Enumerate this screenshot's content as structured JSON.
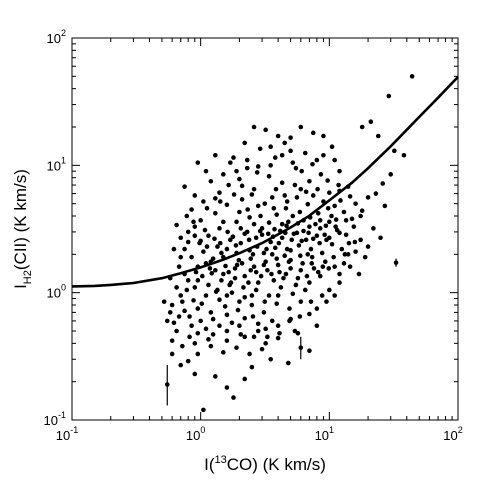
{
  "chart_data": {
    "type": "scatter",
    "xscale": "log",
    "yscale": "log",
    "xlim": [
      0.1,
      100
    ],
    "ylim": [
      0.1,
      100
    ],
    "grid": false,
    "xlabel": {
      "pre": "I(",
      "sup": "13",
      "post": "CO) (K km/s)"
    },
    "ylabel": {
      "main": "I",
      "sub": "H2",
      "post": "(CII) (K km/s)"
    },
    "xticks": [
      {
        "base": "10",
        "exp": "-1"
      },
      {
        "base": "10",
        "exp": "0"
      },
      {
        "base": "10",
        "exp": "1"
      },
      {
        "base": "10",
        "exp": "2"
      }
    ],
    "yticks": [
      {
        "base": "10",
        "exp": "-1"
      },
      {
        "base": "10",
        "exp": "0"
      },
      {
        "base": "10",
        "exp": "1"
      },
      {
        "base": "10",
        "exp": "2"
      }
    ],
    "fit_curve": [
      [
        0.1,
        1.12
      ],
      [
        0.15,
        1.13
      ],
      [
        0.2,
        1.15
      ],
      [
        0.3,
        1.19
      ],
      [
        0.5,
        1.3
      ],
      [
        0.7,
        1.42
      ],
      [
        1,
        1.58
      ],
      [
        1.5,
        1.82
      ],
      [
        2,
        2.04
      ],
      [
        3,
        2.45
      ],
      [
        5,
        3.25
      ],
      [
        7,
        4.02
      ],
      [
        10,
        5.3
      ],
      [
        15,
        7.3
      ],
      [
        20,
        9.5
      ],
      [
        30,
        14.1
      ],
      [
        50,
        24
      ],
      [
        70,
        34
      ],
      [
        100,
        49.5
      ]
    ],
    "error_points": [
      {
        "x": 0.55,
        "y": 0.19,
        "ylo": 0.13,
        "yhi": 0.27
      },
      {
        "x": 6.0,
        "y": 0.37,
        "ylo": 0.3,
        "yhi": 0.45
      },
      {
        "x": 33,
        "y": 1.72,
        "ylo": 1.6,
        "yhi": 1.85
      },
      {
        "x": 1.05,
        "y": 0.12,
        "ylo": 0.12,
        "yhi": 0.12
      }
    ],
    "points": [
      [
        44,
        50
      ],
      [
        29,
        35
      ],
      [
        21,
        22
      ],
      [
        18,
        20
      ],
      [
        24,
        17
      ],
      [
        32,
        13
      ],
      [
        38,
        12
      ],
      [
        30,
        8.5
      ],
      [
        26,
        7.2
      ],
      [
        14,
        6.8
      ],
      [
        12,
        6.3
      ],
      [
        20,
        5.6
      ],
      [
        16,
        5
      ],
      [
        18,
        4.4
      ],
      [
        15,
        3.8
      ],
      [
        22,
        3.2
      ],
      [
        25,
        2.7
      ],
      [
        20,
        2.3
      ],
      [
        14,
        2
      ],
      [
        13,
        1.7
      ],
      [
        17,
        1.4
      ],
      [
        12,
        1.2
      ],
      [
        11,
        0.95
      ],
      [
        9.5,
        0.85
      ],
      [
        8,
        0.75
      ],
      [
        7,
        0.68
      ],
      [
        5,
        0.62
      ],
      [
        8,
        0.55
      ],
      [
        5.7,
        0.48
      ],
      [
        4,
        0.44
      ],
      [
        3.2,
        0.4
      ],
      [
        2.8,
        0.5
      ],
      [
        2.2,
        0.45
      ],
      [
        1.6,
        0.42
      ],
      [
        1.2,
        0.38
      ],
      [
        0.95,
        0.33
      ],
      [
        0.8,
        0.29
      ],
      [
        0.7,
        0.27
      ],
      [
        0.9,
        0.23
      ],
      [
        1.3,
        0.22
      ],
      [
        1.6,
        0.18
      ],
      [
        1.8,
        0.15
      ],
      [
        2.2,
        0.21
      ],
      [
        3.5,
        0.3
      ],
      [
        4.8,
        0.28
      ],
      [
        7,
        0.35
      ],
      [
        2.5,
        0.26
      ],
      [
        0.6,
        0.42
      ],
      [
        0.55,
        0.6
      ],
      [
        0.6,
        0.8
      ],
      [
        0.65,
        1.1
      ],
      [
        0.75,
        1.4
      ],
      [
        0.7,
        1.9
      ],
      [
        0.8,
        2.5
      ],
      [
        0.9,
        3.3
      ],
      [
        0.85,
        4.5
      ],
      [
        0.75,
        6.8
      ],
      [
        1.1,
        9
      ],
      [
        1.2,
        7.5
      ],
      [
        1.4,
        6.1
      ],
      [
        1.5,
        8.5
      ],
      [
        1.8,
        11.5
      ],
      [
        2.2,
        15
      ],
      [
        2.6,
        20
      ],
      [
        3.2,
        19
      ],
      [
        4,
        17
      ],
      [
        5,
        16.5
      ],
      [
        6,
        20
      ],
      [
        7.5,
        18
      ],
      [
        9,
        17
      ],
      [
        10.5,
        14
      ],
      [
        8,
        11
      ],
      [
        6.5,
        12.5
      ],
      [
        5,
        13
      ],
      [
        3.8,
        11.5
      ],
      [
        2.9,
        13.5
      ],
      [
        2.3,
        9.5
      ],
      [
        1.7,
        10.5
      ],
      [
        2,
        7.8
      ],
      [
        2.6,
        6.5
      ],
      [
        3.4,
        8.2
      ],
      [
        4.3,
        7.3
      ],
      [
        5.5,
        9.5
      ],
      [
        7,
        7.5
      ],
      [
        8.6,
        8.5
      ],
      [
        10,
        6.1
      ],
      [
        12,
        9
      ],
      [
        11,
        4.8
      ],
      [
        9,
        5.2
      ],
      [
        7.5,
        5.8
      ],
      [
        6,
        6.5
      ],
      [
        4.7,
        5.2
      ],
      [
        3.6,
        5.6
      ],
      [
        2.8,
        4.8
      ],
      [
        2.1,
        5.4
      ],
      [
        1.6,
        4.9
      ],
      [
        1.3,
        4.2
      ],
      [
        1,
        3.7
      ],
      [
        1.15,
        2.8
      ],
      [
        1.4,
        3.2
      ],
      [
        1.9,
        3.6
      ],
      [
        2.4,
        3.9
      ],
      [
        3,
        3.2
      ],
      [
        3.9,
        4.1
      ],
      [
        4.8,
        3.6
      ],
      [
        5.9,
        4.3
      ],
      [
        7.1,
        3.9
      ],
      [
        8.5,
        3.2
      ],
      [
        10,
        3.6
      ],
      [
        11.5,
        3.1
      ],
      [
        9.5,
        2.6
      ],
      [
        8,
        2.8
      ],
      [
        6.6,
        2.6
      ],
      [
        5.3,
        2.9
      ],
      [
        4.3,
        2.7
      ],
      [
        3.5,
        2.5
      ],
      [
        2.7,
        2.7
      ],
      [
        2.2,
        2.9
      ],
      [
        1.7,
        2.6
      ],
      [
        1.35,
        2.3
      ],
      [
        1.05,
        2.1
      ],
      [
        0.85,
        1.9
      ],
      [
        0.95,
        1.6
      ],
      [
        1.2,
        1.75
      ],
      [
        1.5,
        1.9
      ],
      [
        1.9,
        2.05
      ],
      [
        2.4,
        2.15
      ],
      [
        3.1,
        2.05
      ],
      [
        3.8,
        2.25
      ],
      [
        4.7,
        2.2
      ],
      [
        5.8,
        2.35
      ],
      [
        7.2,
        2.2
      ],
      [
        8.8,
        2.05
      ],
      [
        10.5,
        2.4
      ],
      [
        12.5,
        2.2
      ],
      [
        11,
        1.6
      ],
      [
        9.3,
        1.75
      ],
      [
        7.6,
        1.55
      ],
      [
        6.2,
        1.7
      ],
      [
        5,
        1.8
      ],
      [
        4,
        1.65
      ],
      [
        3.2,
        1.75
      ],
      [
        2.6,
        1.6
      ],
      [
        2.1,
        1.7
      ],
      [
        1.65,
        1.45
      ],
      [
        1.3,
        1.5
      ],
      [
        1.03,
        1.35
      ],
      [
        0.8,
        1.25
      ],
      [
        0.9,
        1.1
      ],
      [
        1.15,
        1.15
      ],
      [
        1.45,
        1.25
      ],
      [
        1.85,
        1.3
      ],
      [
        2.35,
        1.2
      ],
      [
        2.95,
        1.35
      ],
      [
        3.7,
        1.25
      ],
      [
        4.6,
        1.4
      ],
      [
        5.7,
        1.3
      ],
      [
        7,
        1.2
      ],
      [
        8.5,
        1.35
      ],
      [
        6.5,
        1.05
      ],
      [
        5.2,
        0.98
      ],
      [
        4.2,
        1.1
      ],
      [
        3.4,
        0.95
      ],
      [
        2.7,
        1.05
      ],
      [
        2.2,
        0.92
      ],
      [
        1.75,
        1.0
      ],
      [
        1.4,
        0.88
      ],
      [
        1.1,
        0.95
      ],
      [
        0.88,
        0.87
      ],
      [
        0.7,
        0.95
      ],
      [
        0.75,
        0.72
      ],
      [
        0.95,
        0.75
      ],
      [
        1.2,
        0.7
      ],
      [
        1.55,
        0.78
      ],
      [
        1.95,
        0.73
      ],
      [
        2.5,
        0.8
      ],
      [
        3.1,
        0.7
      ],
      [
        3.9,
        0.82
      ],
      [
        4.9,
        0.75
      ],
      [
        6,
        0.85
      ],
      [
        3.6,
        0.6
      ],
      [
        2.8,
        0.57
      ],
      [
        2.2,
        0.63
      ],
      [
        1.75,
        0.58
      ],
      [
        1.4,
        0.55
      ],
      [
        1.1,
        0.52
      ],
      [
        0.85,
        0.55
      ],
      [
        0.65,
        0.5
      ],
      [
        0.72,
        0.38
      ],
      [
        0.9,
        0.4
      ],
      [
        1.15,
        0.43
      ],
      [
        1.5,
        0.34
      ],
      [
        1.9,
        0.37
      ],
      [
        2.4,
        0.33
      ],
      [
        3,
        0.36
      ],
      [
        0.6,
        0.33
      ],
      [
        1.6,
        2.2
      ],
      [
        2.05,
        2.45
      ],
      [
        2.75,
        2.3
      ],
      [
        3.35,
        2.9
      ],
      [
        4.15,
        3.05
      ],
      [
        5.1,
        2.6
      ],
      [
        6.3,
        3.05
      ],
      [
        4.5,
        1.95
      ],
      [
        3.6,
        2.0
      ],
      [
        2.45,
        1.85
      ],
      [
        1.85,
        1.55
      ],
      [
        1.25,
        1.85
      ],
      [
        0.98,
        2.45
      ],
      [
        1.08,
        3.1
      ],
      [
        1.5,
        3.6
      ],
      [
        2.0,
        4.3
      ],
      [
        2.5,
        5.9
      ],
      [
        3.15,
        5.0
      ],
      [
        3.85,
        6.5
      ],
      [
        4.6,
        4.6
      ],
      [
        5.6,
        5.6
      ],
      [
        6.8,
        4.95
      ],
      [
        8.2,
        4.2
      ],
      [
        9.8,
        4.6
      ],
      [
        13,
        4.3
      ],
      [
        15.5,
        3.3
      ],
      [
        17.5,
        2.6
      ],
      [
        19,
        1.9
      ],
      [
        13.5,
        2.85
      ],
      [
        0.68,
        1.6
      ],
      [
        0.62,
        2.2
      ],
      [
        0.58,
        0.7
      ],
      [
        0.52,
        0.85
      ],
      [
        0.58,
        1.3
      ],
      [
        0.62,
        0.58
      ],
      [
        0.8,
        3.0
      ],
      [
        0.9,
        2.8
      ],
      [
        1.3,
        5.5
      ],
      [
        1.65,
        7.0
      ],
      [
        2.1,
        6.9
      ],
      [
        2.75,
        8.8
      ],
      [
        3.5,
        10
      ],
      [
        4.3,
        12
      ],
      [
        5.2,
        10.5
      ],
      [
        6.1,
        9
      ],
      [
        7.4,
        10.2
      ],
      [
        9,
        12
      ],
      [
        11,
        11
      ],
      [
        1.0,
        0.6
      ],
      [
        1.25,
        0.62
      ],
      [
        1.6,
        0.67
      ],
      [
        2.0,
        0.55
      ],
      [
        2.55,
        0.65
      ],
      [
        3.2,
        0.52
      ],
      [
        4.0,
        0.55
      ],
      [
        4.9,
        0.6
      ],
      [
        5.9,
        0.65
      ],
      [
        7.2,
        0.85
      ],
      [
        8.8,
        0.95
      ],
      [
        10,
        1.05
      ],
      [
        12,
        1.4
      ],
      [
        14.5,
        1.6
      ],
      [
        16,
        2.1
      ],
      [
        0.78,
        1.05
      ],
      [
        0.72,
        0.85
      ],
      [
        0.82,
        0.65
      ],
      [
        1.02,
        0.82
      ],
      [
        1.32,
        1.02
      ],
      [
        1.68,
        1.15
      ],
      [
        2.15,
        1.1
      ],
      [
        2.7,
        1.45
      ],
      [
        3.3,
        1.5
      ],
      [
        4.1,
        1.45
      ],
      [
        5.0,
        1.55
      ],
      [
        6.0,
        1.5
      ],
      [
        7.3,
        1.7
      ],
      [
        8.9,
        1.6
      ],
      [
        10.8,
        1.9
      ],
      [
        13.2,
        2.0
      ],
      [
        15.8,
        2.5
      ],
      [
        0.95,
        1.25
      ],
      [
        1.22,
        1.42
      ],
      [
        1.56,
        1.62
      ],
      [
        1.98,
        1.8
      ],
      [
        2.55,
        2.0
      ],
      [
        3.25,
        2.2
      ],
      [
        4.05,
        2.45
      ],
      [
        5.0,
        2.15
      ],
      [
        6.1,
        2.55
      ],
      [
        7.5,
        2.65
      ],
      [
        9.2,
        2.85
      ],
      [
        11.2,
        3.3
      ],
      [
        13.5,
        3.7
      ],
      [
        1.1,
        1.7
      ],
      [
        1.45,
        2.05
      ],
      [
        1.88,
        2.35
      ],
      [
        2.38,
        2.6
      ],
      [
        3.0,
        2.85
      ],
      [
        3.75,
        3.15
      ],
      [
        4.65,
        3.35
      ],
      [
        5.7,
        3.5
      ],
      [
        7.0,
        3.3
      ],
      [
        8.5,
        3.7
      ],
      [
        10.4,
        4.0
      ],
      [
        12.2,
        5.3
      ],
      [
        1.35,
        1.05
      ],
      [
        1.72,
        1.2
      ],
      [
        2.2,
        1.35
      ],
      [
        2.8,
        1.2
      ],
      [
        3.55,
        1.4
      ],
      [
        4.4,
        1.3
      ],
      [
        5.5,
        1.15
      ],
      [
        6.7,
        1.35
      ],
      [
        8.2,
        1.45
      ],
      [
        9.9,
        1.55
      ],
      [
        0.92,
        1.45
      ],
      [
        1.18,
        1.55
      ],
      [
        1.5,
        1.4
      ],
      [
        1.92,
        1.65
      ],
      [
        2.45,
        1.5
      ],
      [
        3.1,
        1.65
      ],
      [
        3.9,
        1.85
      ],
      [
        4.85,
        1.75
      ],
      [
        5.95,
        1.95
      ],
      [
        7.35,
        1.9
      ],
      [
        0.7,
        2.7
      ],
      [
        0.88,
        3.6
      ],
      [
        1.12,
        4.6
      ],
      [
        1.42,
        5.2
      ],
      [
        1.82,
        5.9
      ],
      [
        2.32,
        4.5
      ],
      [
        2.92,
        4.0
      ],
      [
        3.7,
        4.6
      ],
      [
        4.5,
        5.8
      ],
      [
        5.4,
        7.0
      ],
      [
        6.6,
        6.2
      ],
      [
        8.1,
        6.5
      ],
      [
        9.7,
        7.6
      ],
      [
        11.8,
        7.0
      ],
      [
        14.5,
        5.7
      ],
      [
        17.5,
        4.0
      ],
      [
        23,
        6.0
      ],
      [
        27,
        4.8
      ],
      [
        2.3,
        11
      ],
      [
        2.8,
        9.8
      ],
      [
        3.5,
        14
      ],
      [
        4.5,
        15
      ],
      [
        1.9,
        9.0
      ],
      [
        1.3,
        12
      ],
      [
        0.95,
        10.5
      ],
      [
        0.9,
        5.8
      ],
      [
        1.05,
        5.2
      ],
      [
        0.78,
        4.0
      ],
      [
        0.65,
        3.4
      ],
      [
        0.75,
        2.2
      ],
      [
        1.6,
        0.95
      ],
      [
        2.0,
        0.85
      ],
      [
        2.5,
        0.95
      ],
      [
        3.15,
        0.85
      ],
      [
        4.0,
        0.95
      ],
      [
        0.95,
        0.48
      ],
      [
        1.25,
        0.47
      ],
      [
        1.6,
        0.5
      ],
      [
        2.05,
        0.47
      ],
      [
        2.6,
        0.45
      ],
      [
        3.3,
        0.45
      ],
      [
        4.1,
        0.48
      ],
      [
        5.4,
        0.5
      ],
      [
        0.82,
        0.45
      ],
      [
        0.68,
        0.65
      ],
      [
        6.8,
        2.0
      ],
      [
        8.4,
        2.45
      ],
      [
        10,
        2.7
      ],
      [
        12,
        2.95
      ],
      [
        14.2,
        2.45
      ],
      [
        7.8,
        3.45
      ],
      [
        9.4,
        3.35
      ],
      [
        11.3,
        3.75
      ],
      [
        6.3,
        3.7
      ],
      [
        5.2,
        4.0
      ],
      [
        4.3,
        3.45
      ],
      [
        3.4,
        3.55
      ],
      [
        2.6,
        3.45
      ],
      [
        2.05,
        3.2
      ],
      [
        1.62,
        3.0
      ],
      [
        1.28,
        2.65
      ],
      [
        1.0,
        2.55
      ],
      [
        1.12,
        2.3
      ],
      [
        1.42,
        2.45
      ],
      [
        1.78,
        2.75
      ],
      [
        2.3,
        3.0
      ],
      [
        2.9,
        3.05
      ],
      [
        3.65,
        2.75
      ],
      [
        4.55,
        2.95
      ],
      [
        5.6,
        2.95
      ],
      [
        6.9,
        2.95
      ]
    ]
  }
}
